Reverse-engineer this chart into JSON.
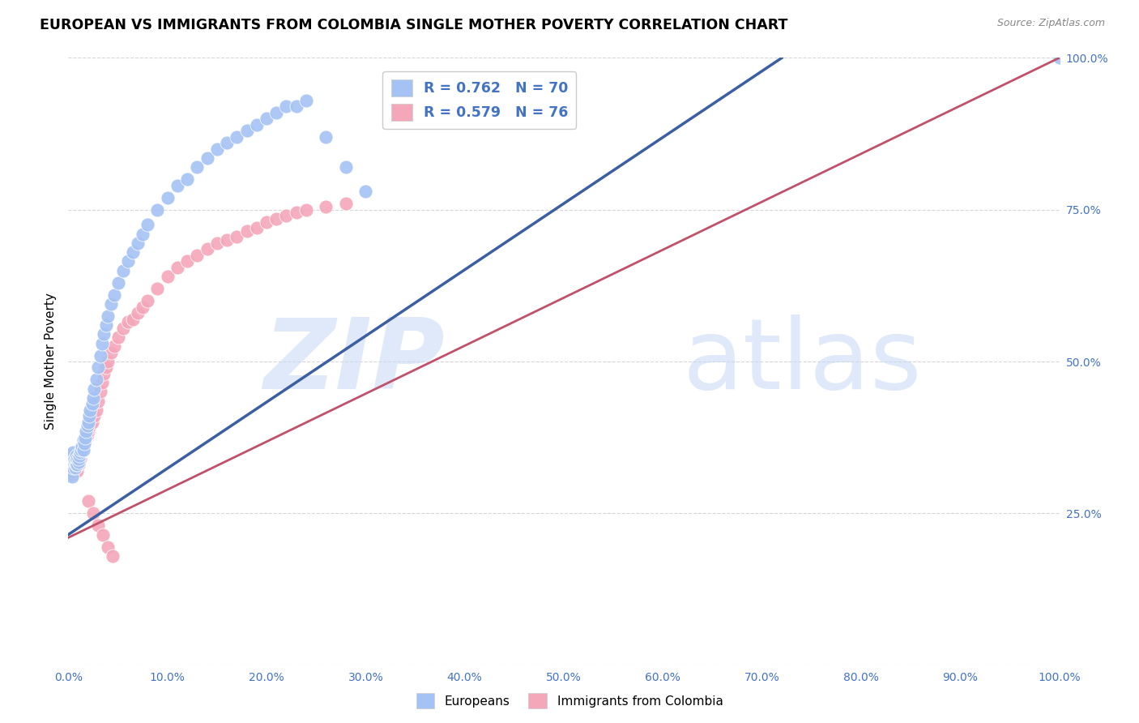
{
  "title": "EUROPEAN VS IMMIGRANTS FROM COLOMBIA SINGLE MOTHER POVERTY CORRELATION CHART",
  "source": "Source: ZipAtlas.com",
  "ylabel": "Single Mother Poverty",
  "watermark_zip": "ZIP",
  "watermark_atlas": "atlas",
  "legend_blue_label": "Europeans",
  "legend_pink_label": "Immigrants from Colombia",
  "legend_blue_r": "R = 0.762",
  "legend_blue_n": "N = 70",
  "legend_pink_r": "R = 0.579",
  "legend_pink_n": "N = 76",
  "blue_color": "#a4c2f4",
  "pink_color": "#f4a7b9",
  "blue_line_color": "#3c5fa3",
  "pink_line_color": "#c0516a",
  "tick_color": "#4472c4",
  "grid_color": "#cccccc",
  "background_color": "#ffffff",
  "blue_line_x0": 0.0,
  "blue_line_y0": 0.215,
  "blue_line_x1": 0.72,
  "blue_line_y1": 1.0,
  "pink_line_x0": 0.0,
  "pink_line_y0": 0.21,
  "pink_line_x1": 1.0,
  "pink_line_y1": 1.0,
  "blue_scatter_x": [
    0.002,
    0.003,
    0.003,
    0.004,
    0.004,
    0.005,
    0.005,
    0.005,
    0.006,
    0.006,
    0.007,
    0.007,
    0.008,
    0.008,
    0.009,
    0.009,
    0.01,
    0.01,
    0.011,
    0.012,
    0.013,
    0.014,
    0.015,
    0.015,
    0.016,
    0.017,
    0.018,
    0.019,
    0.02,
    0.021,
    0.022,
    0.024,
    0.025,
    0.026,
    0.028,
    0.03,
    0.032,
    0.034,
    0.036,
    0.038,
    0.04,
    0.043,
    0.046,
    0.05,
    0.055,
    0.06,
    0.065,
    0.07,
    0.075,
    0.08,
    0.09,
    0.1,
    0.11,
    0.12,
    0.13,
    0.14,
    0.15,
    0.16,
    0.17,
    0.18,
    0.19,
    0.2,
    0.21,
    0.22,
    0.23,
    0.24,
    0.26,
    0.28,
    0.3,
    1.0
  ],
  "blue_scatter_y": [
    0.34,
    0.32,
    0.33,
    0.31,
    0.345,
    0.335,
    0.325,
    0.35,
    0.33,
    0.34,
    0.325,
    0.335,
    0.33,
    0.345,
    0.33,
    0.34,
    0.335,
    0.34,
    0.345,
    0.35,
    0.355,
    0.36,
    0.37,
    0.355,
    0.365,
    0.375,
    0.385,
    0.395,
    0.4,
    0.41,
    0.42,
    0.43,
    0.44,
    0.455,
    0.47,
    0.49,
    0.51,
    0.53,
    0.545,
    0.56,
    0.575,
    0.595,
    0.61,
    0.63,
    0.65,
    0.665,
    0.68,
    0.695,
    0.71,
    0.725,
    0.75,
    0.77,
    0.79,
    0.8,
    0.82,
    0.835,
    0.85,
    0.86,
    0.87,
    0.88,
    0.89,
    0.9,
    0.91,
    0.92,
    0.92,
    0.93,
    0.87,
    0.82,
    0.78,
    1.0
  ],
  "pink_scatter_x": [
    0.001,
    0.002,
    0.002,
    0.003,
    0.003,
    0.003,
    0.004,
    0.004,
    0.004,
    0.005,
    0.005,
    0.005,
    0.006,
    0.006,
    0.007,
    0.007,
    0.008,
    0.008,
    0.009,
    0.009,
    0.01,
    0.01,
    0.011,
    0.012,
    0.013,
    0.014,
    0.015,
    0.016,
    0.017,
    0.018,
    0.019,
    0.02,
    0.021,
    0.022,
    0.024,
    0.026,
    0.028,
    0.03,
    0.032,
    0.034,
    0.036,
    0.038,
    0.04,
    0.043,
    0.046,
    0.05,
    0.055,
    0.06,
    0.065,
    0.07,
    0.075,
    0.08,
    0.09,
    0.1,
    0.11,
    0.12,
    0.13,
    0.14,
    0.15,
    0.16,
    0.17,
    0.18,
    0.19,
    0.2,
    0.21,
    0.22,
    0.23,
    0.24,
    0.26,
    0.28,
    0.02,
    0.025,
    0.03,
    0.035,
    0.04,
    0.045
  ],
  "pink_scatter_y": [
    0.33,
    0.325,
    0.335,
    0.32,
    0.33,
    0.34,
    0.325,
    0.335,
    0.315,
    0.33,
    0.325,
    0.34,
    0.32,
    0.335,
    0.325,
    0.34,
    0.33,
    0.345,
    0.32,
    0.335,
    0.33,
    0.34,
    0.345,
    0.34,
    0.35,
    0.355,
    0.36,
    0.365,
    0.37,
    0.375,
    0.38,
    0.385,
    0.39,
    0.395,
    0.4,
    0.41,
    0.42,
    0.435,
    0.45,
    0.465,
    0.48,
    0.49,
    0.5,
    0.515,
    0.525,
    0.54,
    0.555,
    0.565,
    0.57,
    0.58,
    0.59,
    0.6,
    0.62,
    0.64,
    0.655,
    0.665,
    0.675,
    0.685,
    0.695,
    0.7,
    0.705,
    0.715,
    0.72,
    0.73,
    0.735,
    0.74,
    0.745,
    0.75,
    0.755,
    0.76,
    0.27,
    0.25,
    0.23,
    0.215,
    0.195,
    0.18
  ],
  "xlim": [
    0.0,
    1.0
  ],
  "ylim": [
    0.0,
    1.0
  ],
  "xticks": [
    0.0,
    0.1,
    0.2,
    0.3,
    0.4,
    0.5,
    0.6,
    0.7,
    0.8,
    0.9,
    1.0
  ],
  "yticks": [
    0.0,
    0.25,
    0.5,
    0.75,
    1.0
  ],
  "xtick_labels": [
    "0.0%",
    "10.0%",
    "20.0%",
    "30.0%",
    "40.0%",
    "50.0%",
    "60.0%",
    "70.0%",
    "80.0%",
    "90.0%",
    "100.0%"
  ],
  "ytick_labels": [
    "",
    "25.0%",
    "50.0%",
    "75.0%",
    "100.0%"
  ]
}
